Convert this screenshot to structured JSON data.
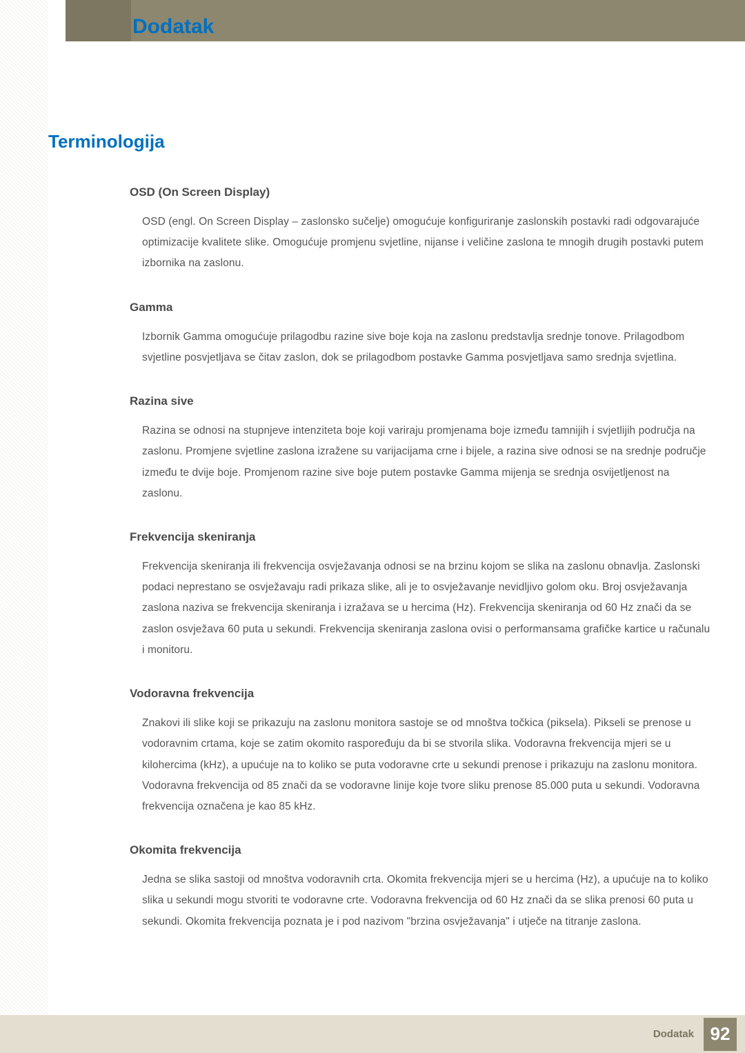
{
  "header": {
    "title": "Dodatak",
    "banner_color": "#8d876f",
    "banner_dark": "#7d7761",
    "title_color": "#0070c0"
  },
  "section": {
    "title": "Terminologija",
    "title_color": "#0070c0"
  },
  "terms": [
    {
      "title": "OSD (On Screen Display)",
      "body": "OSD (engl. On Screen Display – zaslonsko sučelje) omogućuje konfiguriranje zaslonskih postavki radi odgovarajuće optimizacije kvalitete slike. Omogućuje promjenu svjetline, nijanse i veličine zaslona te mnogih drugih postavki putem izbornika na zaslonu."
    },
    {
      "title": "Gamma",
      "body": "Izbornik Gamma omogućuje prilagodbu razine sive boje koja na zaslonu predstavlja srednje tonove. Prilagodbom svjetline posvjetljava se čitav zaslon, dok se prilagodbom postavke Gamma posvjetljava samo srednja svjetlina."
    },
    {
      "title": "Razina sive",
      "body": "Razina se odnosi na stupnjeve intenziteta boje koji variraju promjenama boje između tamnijih i svjetlijih područja na zaslonu. Promjene svjetline zaslona izražene su varijacijama crne i bijele, a razina sive odnosi se na srednje područje između te dvije boje. Promjenom razine sive boje putem postavke Gamma mijenja se srednja osvijetljenost na zaslonu."
    },
    {
      "title": "Frekvencija skeniranja",
      "body": "Frekvencija skeniranja ili frekvencija osvježavanja odnosi se na brzinu kojom se slika na zaslonu obnavlja. Zaslonski podaci neprestano se osvježavaju radi prikaza slike, ali je to osvježavanje nevidljivo golom oku. Broj osvježavanja zaslona naziva se frekvencija skeniranja i izražava se u hercima (Hz). Frekvencija skeniranja od 60 Hz znači da se zaslon osvježava 60 puta u sekundi. Frekvencija skeniranja zaslona ovisi o performansama grafičke kartice u računalu i monitoru."
    },
    {
      "title": "Vodoravna frekvencija",
      "body": "Znakovi ili slike koji se prikazuju na zaslonu monitora sastoje se od mnoštva točkica (piksela). Pikseli se prenose u vodoravnim crtama, koje se zatim okomito raspoređuju da bi se stvorila slika. Vodoravna frekvencija mjeri se u kilohercima (kHz), a upućuje na to koliko se puta vodoravne crte u sekundi prenose i prikazuju na zaslonu monitora. Vodoravna frekvencija od 85 znači da se vodoravne linije koje tvore sliku prenose 85.000 puta u sekundi. Vodoravna frekvencija označena je kao 85 kHz."
    },
    {
      "title": "Okomita frekvencija",
      "body": "Jedna se slika sastoji od mnoštva vodoravnih crta. Okomita frekvencija mjeri se u hercima (Hz), a upućuje na to koliko slika u sekundi mogu stvoriti te vodoravne crte. Vodoravna frekvencija od 60 Hz znači da se slika prenosi 60 puta u sekundi. Okomita frekvencija poznata je i pod nazivom \"brzina osvježavanja\" i utječe na titranje zaslona."
    }
  ],
  "footer": {
    "label": "Dodatak",
    "page_number": "92",
    "bg_color": "#e3ded0",
    "box_color": "#8d876f"
  }
}
